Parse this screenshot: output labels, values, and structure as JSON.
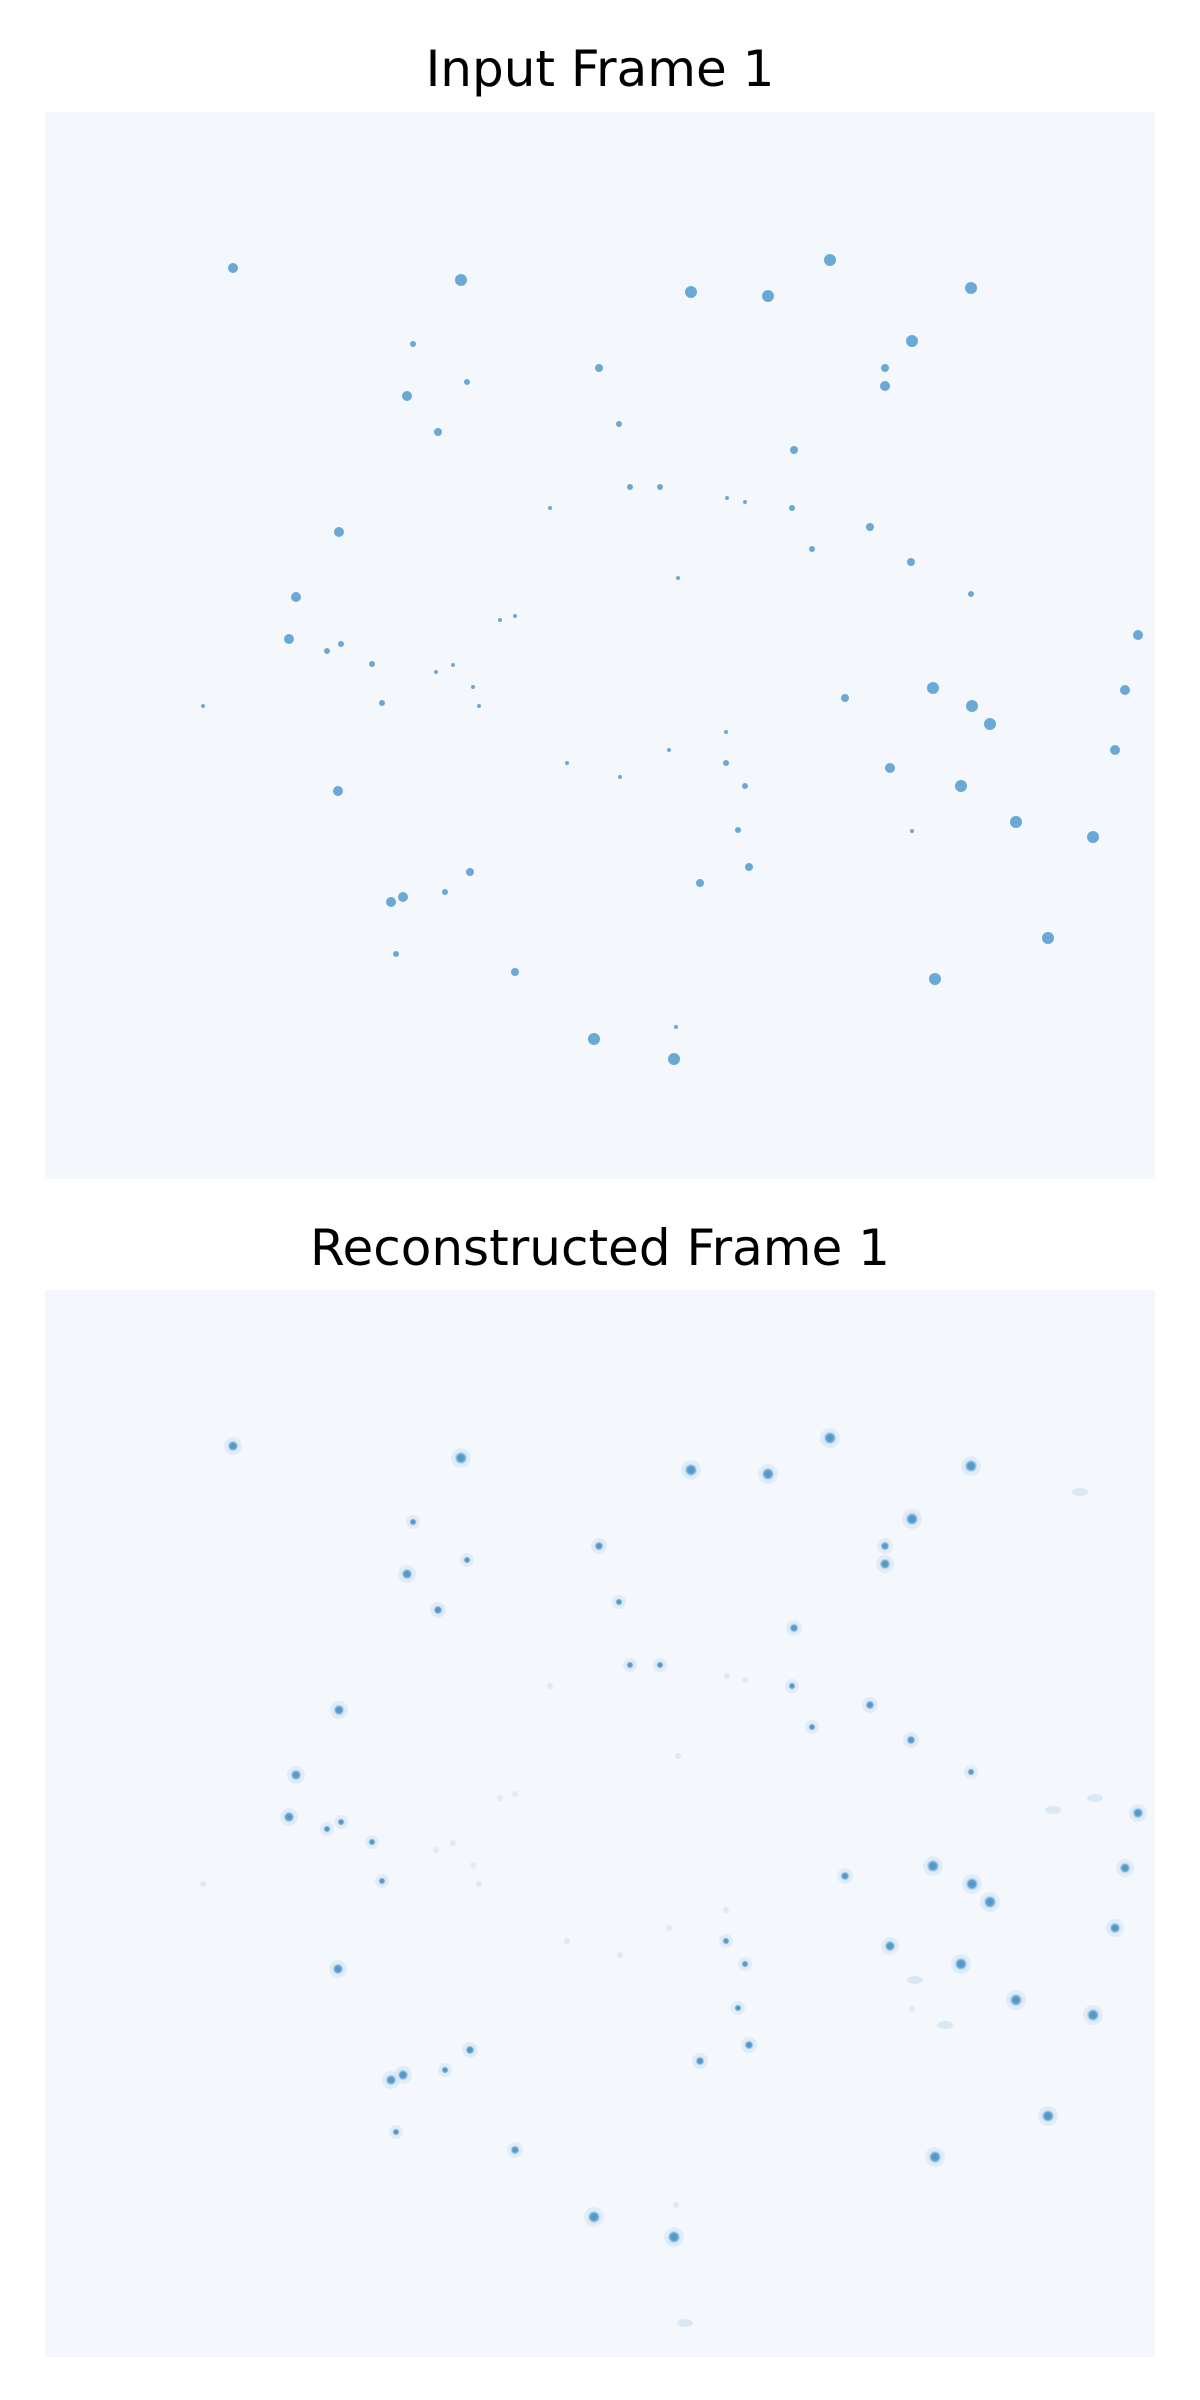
{
  "panels": [
    {
      "title": "Input Frame 1",
      "kind": "input",
      "colormap": {
        "background": "#f4f8fd",
        "spot": "#6aa9d6"
      }
    },
    {
      "title": "Reconstructed Frame 1",
      "kind": "reconstructed",
      "colormap": {
        "background": "#f4f8fd",
        "spot": "#4a93c7",
        "halo": "#cfe1f2"
      }
    }
  ]
}
